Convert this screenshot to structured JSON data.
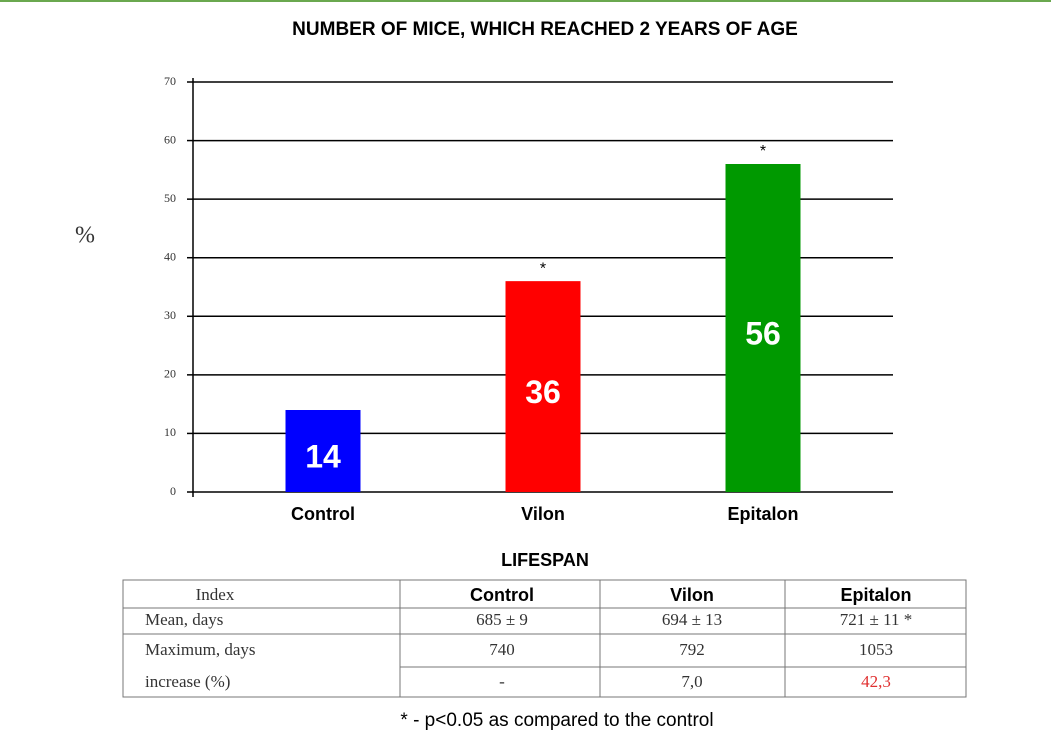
{
  "chart_data": {
    "type": "bar",
    "title": "NUMBER OF MICE, WHICH REACHED 2 YEARS OF AGE",
    "y_label": "%",
    "categories": [
      "Control",
      "Vilon",
      "Epitalon"
    ],
    "values": [
      14,
      36,
      56
    ],
    "colors": [
      "#0000ff",
      "#ff0000",
      "#009900"
    ],
    "significance_marks": [
      null,
      "*",
      "*"
    ],
    "ylim": [
      0,
      70
    ],
    "yticks": [
      0,
      10,
      20,
      30,
      40,
      50,
      60,
      70
    ],
    "grid": true
  },
  "table": {
    "title": "LIFESPAN",
    "header": [
      "Index",
      "Control",
      "Vilon",
      "Epitalon"
    ],
    "rows": [
      [
        "Mean, days",
        "685 ± 9",
        "694 ± 13",
        "721 ± 11 *"
      ],
      [
        "Maximum, days",
        "740",
        "792",
        "1053"
      ],
      [
        "increase (%)",
        "-",
        "7,0",
        "42,3"
      ]
    ],
    "footnote": "* - p<0.05 as compared to the control"
  }
}
